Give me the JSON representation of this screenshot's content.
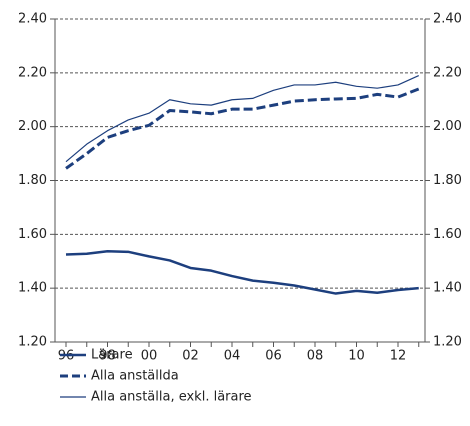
{
  "chart_data": {
    "type": "line",
    "categories": [
      "96",
      null,
      "98",
      null,
      "00",
      null,
      "02",
      null,
      "04",
      null,
      "06",
      null,
      "08",
      null,
      "10",
      null,
      "12",
      null
    ],
    "series": [
      {
        "name": "Lärare",
        "color": "#1d3f7e",
        "line_width": 2.5,
        "dashed": false,
        "values": [
          1.525,
          1.528,
          1.537,
          1.535,
          1.518,
          1.503,
          1.475,
          1.465,
          1.445,
          1.428,
          1.42,
          1.41,
          1.395,
          1.38,
          1.39,
          1.383,
          1.393,
          1.4
        ]
      },
      {
        "name": "Alla anställda",
        "color": "#1d3f7e",
        "line_width": 3,
        "dashed": true,
        "values": [
          1.845,
          1.9,
          1.96,
          1.985,
          2.005,
          2.06,
          2.055,
          2.048,
          2.065,
          2.065,
          2.08,
          2.095,
          2.1,
          2.103,
          2.105,
          2.12,
          2.11,
          2.14
        ]
      },
      {
        "name": "Alla anställa, exkl. lärare",
        "color": "#1d3f7e",
        "line_width": 1.2,
        "dashed": false,
        "values": [
          1.87,
          1.935,
          1.985,
          2.025,
          2.05,
          2.1,
          2.085,
          2.08,
          2.1,
          2.105,
          2.135,
          2.155,
          2.155,
          2.165,
          2.15,
          2.143,
          2.155,
          2.19
        ]
      }
    ],
    "ylim": [
      1.2,
      2.4
    ],
    "yticks": [
      {
        "value": 1.2,
        "label": "1.20"
      },
      {
        "value": 1.4,
        "label": "1.40"
      },
      {
        "value": 1.6,
        "label": "1.60"
      },
      {
        "value": 1.8,
        "label": "1.80"
      },
      {
        "value": 2.0,
        "label": "2.00"
      },
      {
        "value": 2.2,
        "label": "2.20"
      },
      {
        "value": 2.4,
        "label": "2.40"
      }
    ],
    "y2lim": [
      1.2,
      2.4
    ],
    "y2ticks": [
      {
        "value": 1.2,
        "label": "1.20"
      },
      {
        "value": 1.4,
        "label": "1.40"
      },
      {
        "value": 1.6,
        "label": "1.60"
      },
      {
        "value": 1.8,
        "label": "1.80"
      },
      {
        "value": 2.0,
        "label": "2.00"
      },
      {
        "value": 2.2,
        "label": "2.20"
      },
      {
        "value": 2.4,
        "label": "2.40"
      }
    ],
    "grid": true,
    "legend": "bottom-left"
  }
}
